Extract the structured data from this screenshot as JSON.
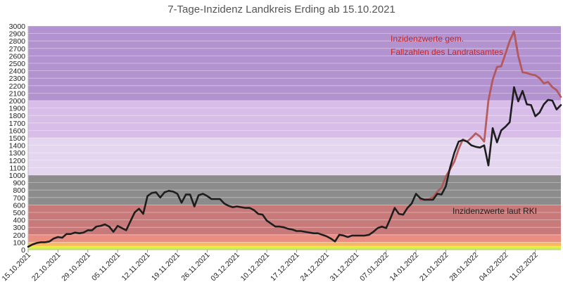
{
  "chart_data": {
    "type": "line",
    "title": "7-Tage-Inzidenz Landkreis Erding ab 15.10.2021",
    "ylim": [
      0,
      3000
    ],
    "y_ticks": [
      0,
      100,
      200,
      300,
      400,
      500,
      600,
      700,
      800,
      900,
      1000,
      1100,
      1200,
      1300,
      1400,
      1500,
      1600,
      1700,
      1800,
      1900,
      2000,
      2100,
      2200,
      2300,
      2400,
      2500,
      2600,
      2700,
      2800,
      2900,
      3000
    ],
    "x_tick_labels": [
      "15.10.2021",
      "22.10.2021",
      "29.10.2021",
      "05.11.2021",
      "12.11.2021",
      "19.11.2021",
      "26.11.2021",
      "03.12.2021",
      "10.12.2021",
      "17.12.2021",
      "24.12.2021",
      "31.12.2021",
      "07.01.2022",
      "14.01.2022",
      "21.01.2022",
      "28.01.2022",
      "04.02.2022",
      "11.02.2022"
    ],
    "x_range_days": [
      0,
      125
    ],
    "background_bands": [
      {
        "from": 0,
        "to": 35,
        "color": "#ccf24a"
      },
      {
        "from": 35,
        "to": 50,
        "color": "#f9e64a"
      },
      {
        "from": 50,
        "to": 100,
        "color": "#f5b866"
      },
      {
        "from": 100,
        "to": 200,
        "color": "#ea8d82"
      },
      {
        "from": 200,
        "to": 600,
        "color": "#c87a7a"
      },
      {
        "from": 600,
        "to": 1000,
        "color": "#8c8c8c"
      },
      {
        "from": 1000,
        "to": 1500,
        "color": "#e5d6f0"
      },
      {
        "from": 1500,
        "to": 2000,
        "color": "#d7bde8"
      },
      {
        "from": 2000,
        "to": 3000,
        "color": "#b393cf"
      }
    ],
    "series": [
      {
        "name": "Inzidenzwerte laut RKI",
        "color": "#1e1e1e",
        "x": [
          0,
          1,
          2,
          3,
          4,
          5,
          6,
          7,
          8,
          9,
          10,
          11,
          12,
          13,
          14,
          15,
          16,
          17,
          18,
          19,
          20,
          21,
          22,
          23,
          24,
          25,
          26,
          27,
          28,
          29,
          30,
          31,
          32,
          33,
          34,
          35,
          36,
          37,
          38,
          39,
          40,
          41,
          42,
          43,
          44,
          45,
          46,
          47,
          48,
          49,
          50,
          51,
          52,
          53,
          54,
          55,
          56,
          57,
          58,
          59,
          60,
          61,
          62,
          63,
          64,
          65,
          66,
          67,
          68,
          69,
          70,
          71,
          72,
          73,
          74,
          75,
          76,
          77,
          78,
          79,
          80,
          81,
          82,
          83,
          84,
          85,
          86,
          87,
          88,
          89,
          90,
          91,
          92,
          93,
          94,
          95,
          96,
          97,
          98,
          99,
          100,
          101,
          102,
          103,
          104,
          105,
          106,
          107,
          108,
          109,
          110,
          111,
          112,
          113,
          114,
          115,
          116,
          117,
          118,
          119,
          120,
          121,
          122,
          123,
          124,
          125
        ],
        "values": [
          40,
          70,
          90,
          100,
          100,
          110,
          150,
          170,
          160,
          210,
          210,
          230,
          220,
          230,
          260,
          260,
          310,
          320,
          340,
          310,
          240,
          320,
          290,
          260,
          380,
          500,
          550,
          480,
          720,
          760,
          770,
          700,
          770,
          790,
          780,
          750,
          630,
          740,
          740,
          580,
          730,
          750,
          720,
          680,
          680,
          680,
          620,
          590,
          570,
          580,
          570,
          560,
          560,
          530,
          480,
          470,
          390,
          350,
          310,
          310,
          300,
          280,
          270,
          250,
          250,
          240,
          230,
          220,
          220,
          200,
          180,
          150,
          110,
          200,
          190,
          170,
          190,
          190,
          190,
          190,
          200,
          240,
          290,
          310,
          290,
          420,
          560,
          480,
          470,
          560,
          620,
          750,
          690,
          670,
          670,
          670,
          750,
          740,
          850,
          1100,
          1300,
          1450,
          1470,
          1450,
          1400,
          1380,
          1370,
          1400,
          1130,
          1630,
          1440,
          1600,
          1650,
          1710,
          2180,
          1990,
          2130,
          1950,
          1940,
          1790,
          1840,
          1950,
          2010,
          2000,
          1880,
          1940
        ]
      },
      {
        "name": "Inzidenzwerte gem. Fallzahlen des Landratsamtes",
        "color": "#b2524f",
        "x": [
          92,
          93,
          94,
          95,
          96,
          97,
          98,
          99,
          100,
          101,
          102,
          103,
          104,
          105,
          106,
          107,
          108,
          109,
          110,
          111,
          112,
          113,
          114,
          115,
          116,
          117,
          118,
          119,
          120,
          121,
          122,
          123,
          124,
          125
        ],
        "values": [
          670,
          670,
          680,
          700,
          780,
          830,
          980,
          1080,
          1180,
          1350,
          1480,
          1450,
          1500,
          1560,
          1520,
          1450,
          2000,
          2280,
          2450,
          2460,
          2630,
          2800,
          2930,
          2600,
          2380,
          2370,
          2350,
          2340,
          2300,
          2230,
          2250,
          2180,
          2140,
          2050
        ]
      }
    ],
    "annotations": [
      {
        "line1": "Inzidenzwerte gem.",
        "line2": "Fallzahlen des Landratsamtes",
        "color": "#c0272d"
      },
      {
        "line1": "Inzidenzwerte laut RKI",
        "color": "#1e1e1e"
      }
    ]
  }
}
